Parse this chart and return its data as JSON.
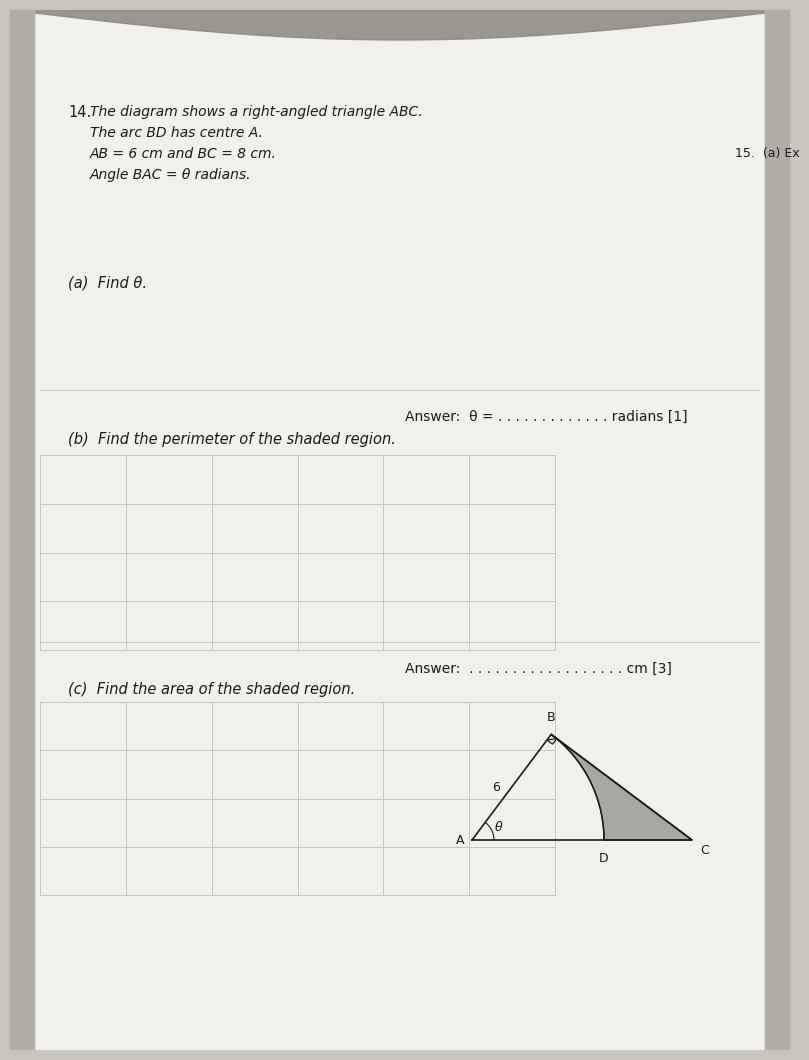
{
  "bg_color": "#c8c5be",
  "page_bg": "#f2f0ec",
  "question_number": "14.",
  "intro_lines": [
    "The diagram shows a right-angled triangle ABC.",
    "The arc BD has centre A.",
    "AB = 6 cm and BC = 8 cm.",
    "Angle BAC = θ radians."
  ],
  "part_a_label": "(a)  Find θ.",
  "part_b_label": "(b)  Find the perimeter of the shaded region.",
  "part_c_label": "(c)  Find the area of the shaded region.",
  "answer_a": "Answer:  θ = . . . . . . . . . . . . . radians [1]",
  "answer_b": "Answer:  . . . . . . . . . . . . . . . . . . cm [3]",
  "side_note": "15.  (a) Ex",
  "shaded_color": "#a8a8a4",
  "line_color": "#1a1a1a",
  "grid_color": "#c8c5be",
  "text_color": "#1a1a1a",
  "n_rows_b": 4,
  "n_cols_b": 6,
  "n_rows_c": 4,
  "n_cols_c": 6
}
